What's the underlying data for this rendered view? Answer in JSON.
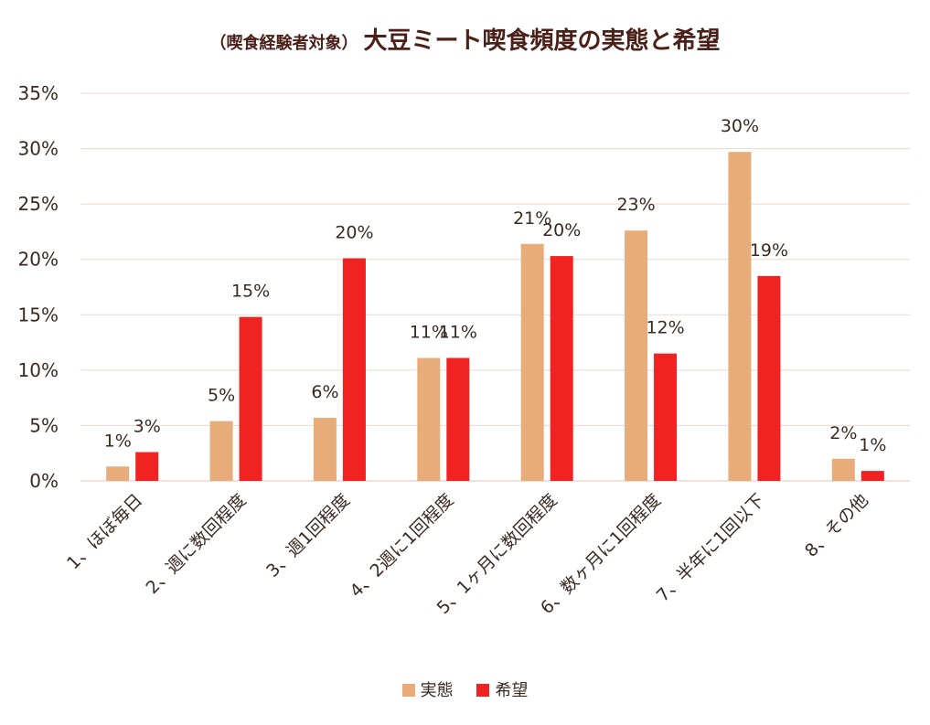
{
  "colors": {
    "actual": "#E8AC7A",
    "desired": "#F02222",
    "grid": "#ecd9cf",
    "text": "#3a2a22"
  },
  "chart_data": {
    "type": "bar",
    "title_sub": "（喫食経験者対象）",
    "title": "大豆ミート喫食頻度の実態と希望",
    "categories": [
      "1、ほぼ毎日",
      "2、週に数回程度",
      "3、週1回程度",
      "4、2週に1回程度",
      "5、1ヶ月に数回程度",
      "6、数ヶ月に1回程度",
      "7、半年に1回以下",
      "8、その他"
    ],
    "series": [
      {
        "name": "実態",
        "values": [
          1.3,
          5.4,
          5.7,
          11.1,
          21.4,
          22.6,
          29.7,
          2.0
        ],
        "labels": [
          "1%",
          "5%",
          "6%",
          "11%",
          "21%",
          "23%",
          "30%",
          "2%"
        ]
      },
      {
        "name": "希望",
        "values": [
          2.6,
          14.8,
          20.1,
          11.1,
          20.3,
          11.5,
          18.5,
          0.9
        ],
        "labels": [
          "3%",
          "15%",
          "20%",
          "11%",
          "20%",
          "12%",
          "19%",
          "1%"
        ]
      }
    ],
    "yticks": [
      "0%",
      "5%",
      "10%",
      "15%",
      "20%",
      "25%",
      "30%",
      "35%"
    ],
    "ylim": [
      0,
      35
    ],
    "grid": true,
    "legend_position": "bottom"
  }
}
